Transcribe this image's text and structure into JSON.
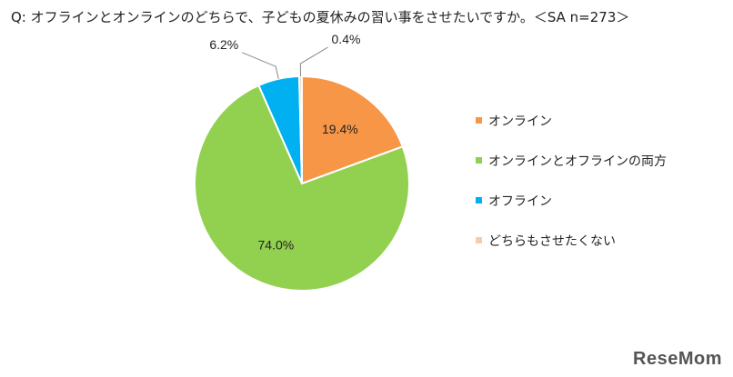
{
  "question": "Q:  オフラインとオンラインのどちらで、子どもの夏休みの習い事をさせたいですか。＜SA n=273＞",
  "watermark": "ReseMom",
  "chart_data": {
    "type": "pie",
    "categories": [
      "オンライン",
      "オンラインとオフラインの両方",
      "オフライン",
      "どちらもさせたくない"
    ],
    "values": [
      19.4,
      74.0,
      6.2,
      0.4
    ],
    "labels": [
      "19.4%",
      "74.0%",
      "6.2%",
      "0.4%"
    ],
    "colors": [
      "#F79646",
      "#92D050",
      "#00B0F0",
      "#F8CBAD"
    ],
    "legend_position": "right"
  }
}
